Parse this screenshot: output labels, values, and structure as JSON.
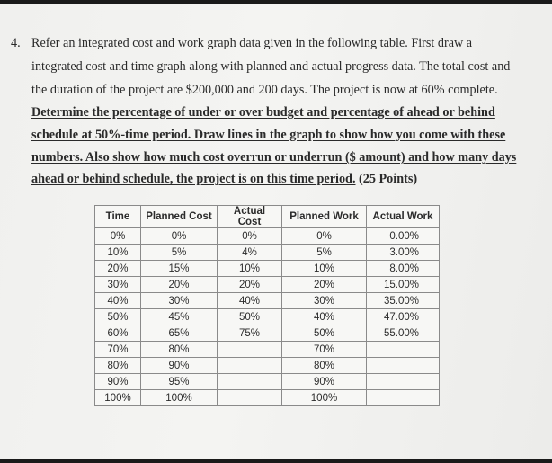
{
  "question": {
    "number": "4.",
    "lines": [
      "Refer an integrated cost and work graph data given in the following table. First draw a",
      "integrated cost and time graph along with planned and actual progress data. The total cost and",
      "the duration of the project are $200,000 and 200 days. The project is now at 60% complete."
    ],
    "underlined_lines": [
      "Determine the percentage of under or over budget and percentage of ahead or behind",
      "schedule at 50%-time period. Draw lines in the graph to show how you come with these",
      "numbers. Also show how much cost overrun or underrun ($ amount) and how many days"
    ],
    "last_line_underlined": "ahead or behind schedule, the project is on this time period.",
    "points": " (25 Points)"
  },
  "table": {
    "headers": [
      "Time",
      "Planned Cost",
      "Actual Cost",
      "Planned Work",
      "Actual Work"
    ],
    "rows": [
      [
        "0%",
        "0%",
        "0%",
        "0%",
        "0.00%"
      ],
      [
        "10%",
        "5%",
        "4%",
        "5%",
        "3.00%"
      ],
      [
        "20%",
        "15%",
        "10%",
        "10%",
        "8.00%"
      ],
      [
        "30%",
        "20%",
        "20%",
        "20%",
        "15.00%"
      ],
      [
        "40%",
        "30%",
        "40%",
        "30%",
        "35.00%"
      ],
      [
        "50%",
        "45%",
        "50%",
        "40%",
        "47.00%"
      ],
      [
        "60%",
        "65%",
        "75%",
        "50%",
        "55.00%"
      ],
      [
        "70%",
        "80%",
        "",
        "70%",
        ""
      ],
      [
        "80%",
        "90%",
        "",
        "80%",
        ""
      ],
      [
        "90%",
        "95%",
        "",
        "90%",
        ""
      ],
      [
        "100%",
        "100%",
        "",
        "100%",
        ""
      ]
    ]
  }
}
